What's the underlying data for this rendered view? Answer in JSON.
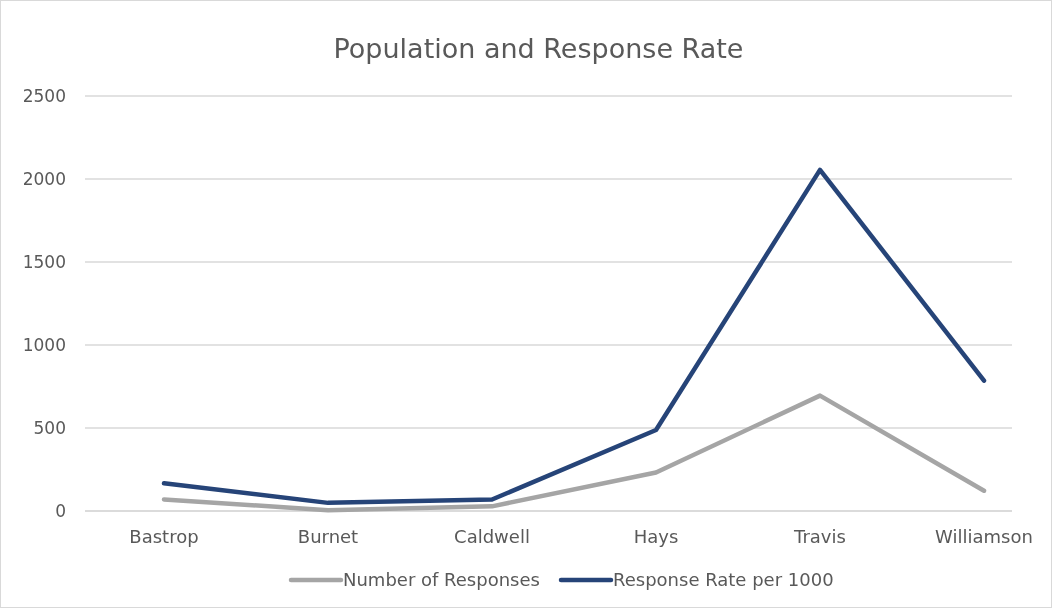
{
  "chart_data": {
    "type": "line",
    "title": "Population and Response Rate",
    "categories": [
      "Bastrop",
      "Burnet",
      "Caldwell",
      "Hays",
      "Travis",
      "Williamson"
    ],
    "series": [
      {
        "name": "Number of Responses",
        "color": "#a5a5a5",
        "values": [
          70,
          5,
          28,
          232,
          695,
          122
        ]
      },
      {
        "name": "Response Rate per 1000",
        "color": "#264478",
        "values": [
          167,
          49,
          69,
          488,
          2055,
          785
        ]
      }
    ],
    "ylim": [
      0,
      2500
    ],
    "yticks": [
      0,
      500,
      1000,
      1500,
      2000,
      2500
    ],
    "grid": "y",
    "legend": "bottom",
    "marker": "none",
    "line_style": "solid"
  }
}
